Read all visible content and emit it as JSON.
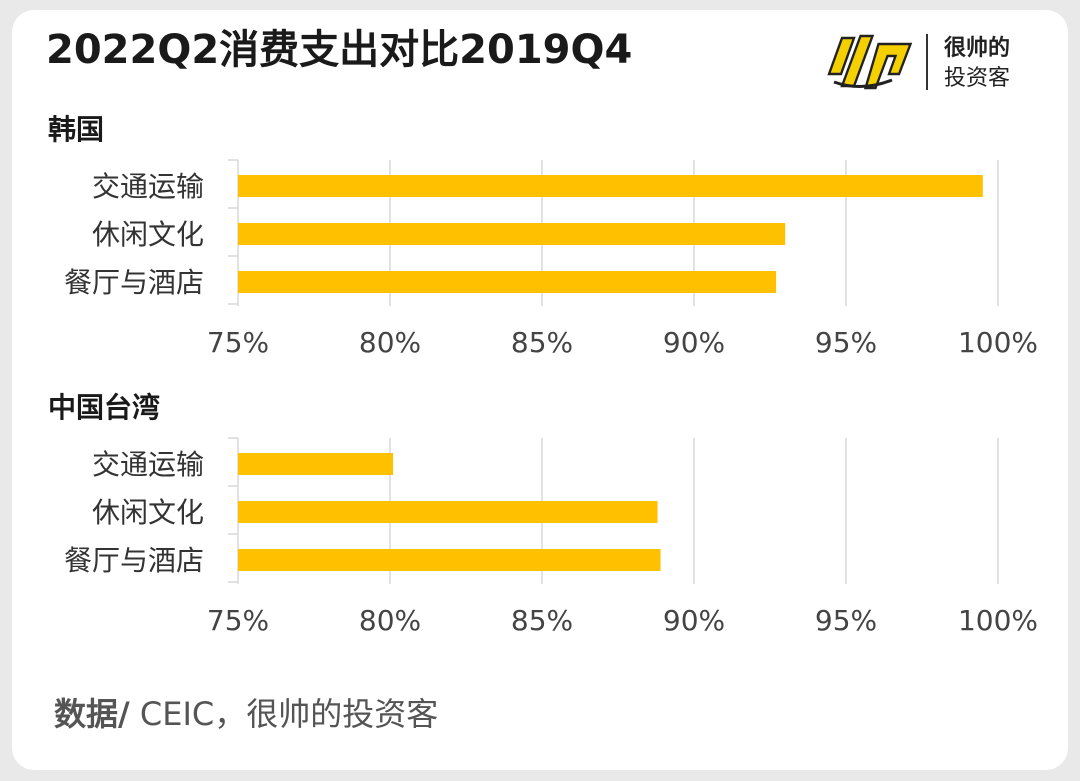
{
  "title": "2022Q2消费支出对比2019Q4",
  "logo": {
    "line1": "很帅的",
    "line2": "投资客",
    "mark_color": "#f5d000"
  },
  "source": {
    "label": "数据/",
    "text": " CEIC，很帅的投资客"
  },
  "colors": {
    "bar": "#ffc000",
    "grid": "#d9d9d9"
  },
  "chart_data": [
    {
      "type": "bar",
      "orientation": "horizontal",
      "title": "韩国",
      "categories": [
        "交通运输",
        "休闲文化",
        "餐厅与酒店"
      ],
      "values": [
        99.5,
        93.0,
        92.7
      ],
      "xlim": [
        75,
        100
      ],
      "ticks": [
        75,
        80,
        85,
        90,
        95,
        100
      ],
      "tick_labels": [
        "75%",
        "80%",
        "85%",
        "90%",
        "95%",
        "100%"
      ],
      "grid": true
    },
    {
      "type": "bar",
      "orientation": "horizontal",
      "title": "中国台湾",
      "categories": [
        "交通运输",
        "休闲文化",
        "餐厅与酒店"
      ],
      "values": [
        80.1,
        88.8,
        88.9
      ],
      "xlim": [
        75,
        100
      ],
      "ticks": [
        75,
        80,
        85,
        90,
        95,
        100
      ],
      "tick_labels": [
        "75%",
        "80%",
        "85%",
        "90%",
        "95%",
        "100%"
      ],
      "grid": true
    }
  ]
}
